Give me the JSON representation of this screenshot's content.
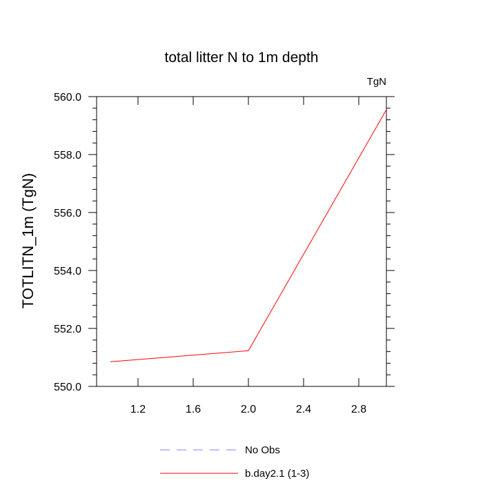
{
  "chart_data": {
    "type": "line",
    "title": "total litter N to 1m depth",
    "units_label": "TgN",
    "ylabel": "TOTLITN_1m  (TgN)",
    "xlabel": "",
    "xlim": [
      0.9,
      3.0
    ],
    "ylim": [
      550.0,
      560.0
    ],
    "x_ticks": [
      1.2,
      1.6,
      2.0,
      2.4,
      2.8
    ],
    "x_tick_labels": [
      "1.2",
      "1.6",
      "2.0",
      "2.4",
      "2.8"
    ],
    "y_ticks": [
      550.0,
      552.0,
      554.0,
      556.0,
      558.0,
      560.0
    ],
    "y_tick_labels": [
      "550.0",
      "552.0",
      "554.0",
      "556.0",
      "558.0",
      "560.0"
    ],
    "grid": false,
    "legend_position": "bottom-center",
    "series": [
      {
        "name": "b.day2.1 (1-3)",
        "color": "#ff0000",
        "dash": "solid",
        "x": [
          1,
          2,
          3
        ],
        "y": [
          550.85,
          551.23,
          559.55
        ]
      }
    ],
    "legend": [
      {
        "label": "No Obs",
        "color": "#8080ff",
        "dash": "dashed"
      },
      {
        "label": "b.day2.1 (1-3)",
        "color": "#ff0000",
        "dash": "solid"
      }
    ]
  }
}
